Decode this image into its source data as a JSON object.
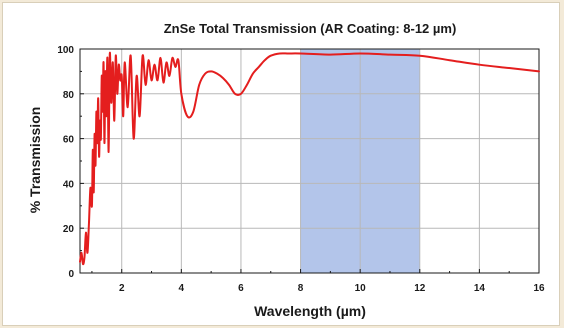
{
  "chart_data": {
    "type": "line",
    "title": "ZnSe Total Transmission (AR Coating: 8-12 µm)",
    "xlabel": "Wavelength (µm)",
    "ylabel": "% Transmission",
    "xlim": [
      0.6,
      16
    ],
    "ylim": [
      0,
      100
    ],
    "xticks": [
      2,
      4,
      6,
      8,
      10,
      12,
      14,
      16
    ],
    "yticks": [
      0,
      20,
      40,
      60,
      80,
      100
    ],
    "grid": true,
    "highlight_band": {
      "x": [
        8,
        12
      ],
      "color": "#b3c5ea"
    },
    "series": [
      {
        "color": "#e41e1e",
        "x": [
          0.6,
          0.65,
          0.7,
          0.75,
          0.8,
          0.85,
          0.9,
          0.95,
          1.0,
          1.03,
          1.06,
          1.09,
          1.12,
          1.15,
          1.18,
          1.21,
          1.24,
          1.27,
          1.3,
          1.33,
          1.36,
          1.39,
          1.42,
          1.45,
          1.48,
          1.52,
          1.56,
          1.6,
          1.65,
          1.7,
          1.75,
          1.8,
          1.85,
          1.9,
          1.95,
          2.0,
          2.05,
          2.1,
          2.2,
          2.3,
          2.4,
          2.5,
          2.6,
          2.7,
          2.8,
          2.9,
          3.0,
          3.1,
          3.2,
          3.3,
          3.4,
          3.5,
          3.6,
          3.7,
          3.8,
          3.9,
          4.0,
          4.2,
          4.4,
          4.6,
          4.8,
          5.0,
          5.2,
          5.4,
          5.6,
          5.8,
          6.0,
          6.2,
          6.4,
          6.6,
          6.8,
          7.0,
          7.3,
          7.6,
          8.0,
          9.0,
          10.0,
          11.0,
          12.0,
          13.0,
          14.0,
          15.0,
          16.0
        ],
        "y": [
          5,
          9,
          4,
          7,
          18,
          9,
          22,
          38,
          30,
          55,
          36,
          62,
          48,
          72,
          58,
          78,
          52,
          68,
          60,
          88,
          72,
          94,
          58,
          90,
          70,
          96,
          54,
          98,
          76,
          94,
          68,
          97,
          80,
          93,
          86,
          88,
          70,
          94,
          74,
          97,
          60,
          88,
          70,
          97,
          84,
          95,
          86,
          93,
          86,
          96,
          85,
          94,
          88,
          96,
          92,
          95,
          80,
          70,
          72,
          84,
          89,
          90,
          89,
          87,
          84,
          80,
          80,
          84,
          89,
          92,
          95,
          97,
          98,
          98,
          98,
          97.5,
          98,
          97.5,
          97,
          95,
          93,
          91.5,
          90
        ]
      }
    ]
  }
}
